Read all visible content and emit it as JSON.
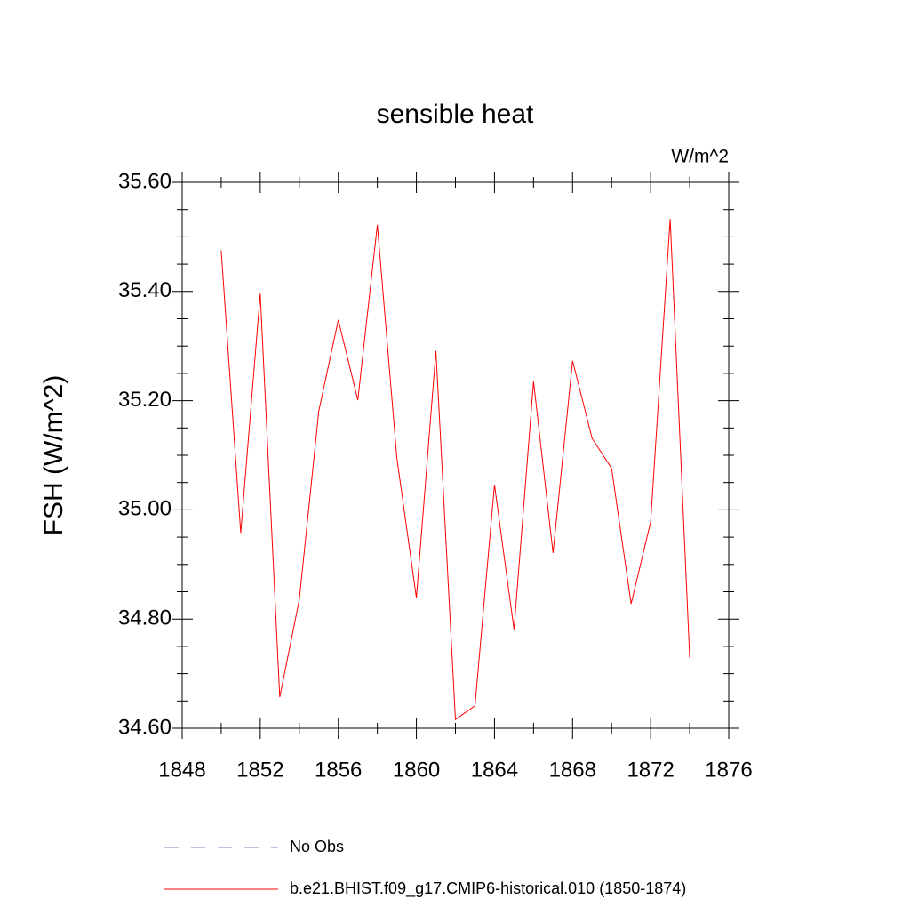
{
  "chart_data": {
    "type": "line",
    "title": "sensible heat",
    "units": "W/m^2",
    "y_label": "FSH  (W/m^2)",
    "x": [
      1850,
      1851,
      1852,
      1853,
      1854,
      1855,
      1856,
      1857,
      1858,
      1859,
      1860,
      1861,
      1862,
      1863,
      1864,
      1865,
      1866,
      1867,
      1868,
      1869,
      1870,
      1871,
      1872,
      1873,
      1874
    ],
    "series": [
      {
        "name": "b.e21.BHIST.f09_g17.CMIP6-historical.010 (1850-1874)",
        "color": "#ff0000",
        "values": [
          35.475,
          34.958,
          35.396,
          34.657,
          34.835,
          35.181,
          35.348,
          35.201,
          35.522,
          35.095,
          34.839,
          35.291,
          34.616,
          34.641,
          35.046,
          34.781,
          35.235,
          34.921,
          35.273,
          35.131,
          35.076,
          34.828,
          34.978,
          35.533,
          34.729
        ]
      }
    ],
    "legend_extra": [
      {
        "name": "No Obs",
        "color": "#8080c0",
        "dash": true
      }
    ],
    "xlim": [
      1848,
      1876
    ],
    "ylim": [
      34.6,
      35.6
    ],
    "xticks": [
      1848,
      1852,
      1856,
      1860,
      1864,
      1868,
      1872,
      1876
    ],
    "yticks": [
      {
        "value": 34.6,
        "label": "34.60"
      },
      {
        "value": 34.8,
        "label": "34.80"
      },
      {
        "value": 35.0,
        "label": "35.00"
      },
      {
        "value": 35.2,
        "label": "35.20"
      },
      {
        "value": 35.4,
        "label": "35.40"
      },
      {
        "value": 35.6,
        "label": "35.60"
      }
    ],
    "x_minor_ticks": [
      1850,
      1854,
      1858,
      1862,
      1866,
      1870,
      1874
    ],
    "y_minor_ticks": [
      34.65,
      34.7,
      34.75,
      34.85,
      34.9,
      34.95,
      35.05,
      35.1,
      35.15,
      35.25,
      35.3,
      35.35,
      35.45,
      35.5,
      35.55
    ]
  }
}
